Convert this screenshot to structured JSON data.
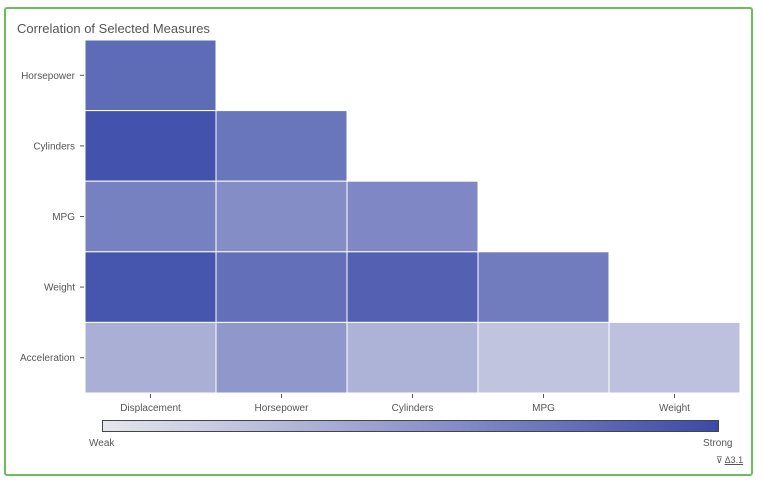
{
  "title": "Correlation of Selected Measures",
  "colors": {
    "weak": "#e6e6ee",
    "strong": "#3a4aa8",
    "border": "#6abf5a"
  },
  "legend": {
    "weak_label": "Weak",
    "strong_label": "Strong"
  },
  "filter_indicator": {
    "icon": "filter-icon",
    "glyph": "⊽",
    "label": "Δ3.1"
  },
  "chart_data": {
    "type": "heatmap",
    "title": "Correlation of Selected Measures",
    "x_categories": [
      "Displacement",
      "Horsepower",
      "Cylinders",
      "MPG",
      "Weight"
    ],
    "y_categories": [
      "Horsepower",
      "Cylinders",
      "MPG",
      "Weight",
      "Acceleration"
    ],
    "cells": [
      {
        "row": "Horsepower",
        "col": "Displacement",
        "strength": 0.79
      },
      {
        "row": "Cylinders",
        "col": "Displacement",
        "strength": 0.95
      },
      {
        "row": "Cylinders",
        "col": "Horsepower",
        "strength": 0.72
      },
      {
        "row": "MPG",
        "col": "Displacement",
        "strength": 0.65
      },
      {
        "row": "MPG",
        "col": "Horsepower",
        "strength": 0.57
      },
      {
        "row": "MPG",
        "col": "Cylinders",
        "strength": 0.6
      },
      {
        "row": "Weight",
        "col": "Displacement",
        "strength": 0.93
      },
      {
        "row": "Weight",
        "col": "Horsepower",
        "strength": 0.76
      },
      {
        "row": "Weight",
        "col": "Cylinders",
        "strength": 0.85
      },
      {
        "row": "Weight",
        "col": "MPG",
        "strength": 0.68
      },
      {
        "row": "Acceleration",
        "col": "Displacement",
        "strength": 0.35
      },
      {
        "row": "Acceleration",
        "col": "Horsepower",
        "strength": 0.5
      },
      {
        "row": "Acceleration",
        "col": "Cylinders",
        "strength": 0.33
      },
      {
        "row": "Acceleration",
        "col": "MPG",
        "strength": 0.22
      },
      {
        "row": "Acceleration",
        "col": "Weight",
        "strength": 0.24
      }
    ],
    "legend_placement": "bottom",
    "grid": false
  }
}
